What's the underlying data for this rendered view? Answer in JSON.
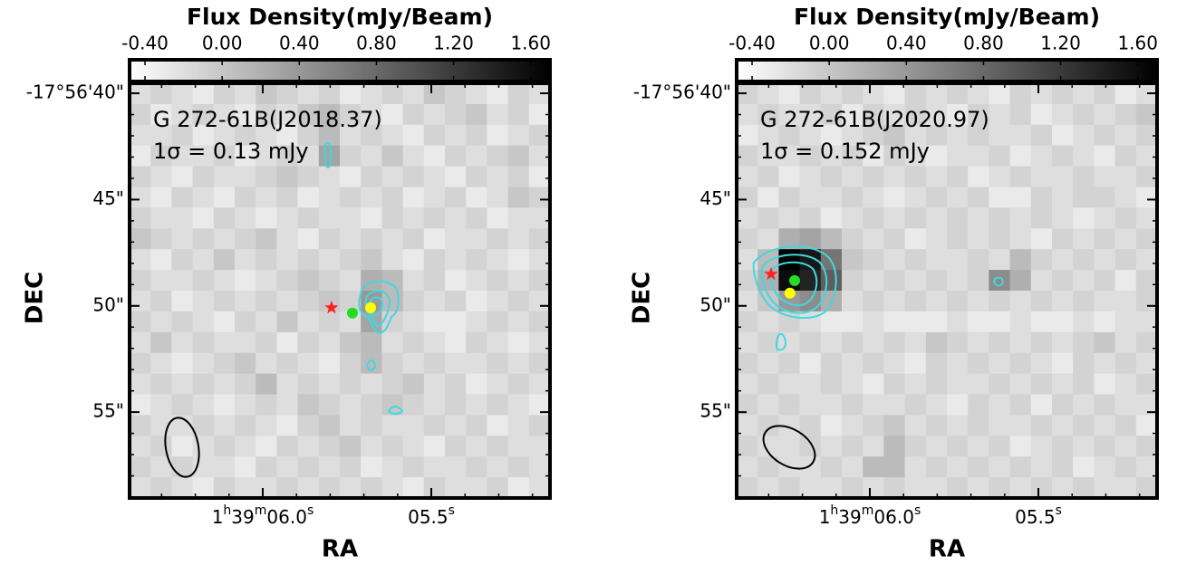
{
  "chart_data": [
    {
      "type": "heatmap",
      "colorbar_label": "Flux Density(mJy/Beam)",
      "colormap": "gray_r",
      "clim": [
        -0.48,
        1.7
      ],
      "cticks": [
        {
          "value": -0.4,
          "label": "-0.40"
        },
        {
          "value": 0,
          "label": "0.00"
        },
        {
          "value": 0.4,
          "label": "0.40"
        },
        {
          "value": 0.8,
          "label": "0.80"
        },
        {
          "value": 1.2,
          "label": "1.20"
        },
        {
          "value": 1.6,
          "label": "1.60"
        }
      ],
      "xlabel": "RA",
      "ylabel": "DEC",
      "xlim": [
        6.395,
        5.148
      ],
      "xticks": [
        {
          "value": 6.0,
          "label": "1h39m06.0s"
        },
        {
          "value": 5.5,
          "label": "05.5s"
        }
      ],
      "ylim": [
        39.53,
        59.04
      ],
      "yticks": [
        {
          "value": 40,
          "label": "-17°56'40\""
        },
        {
          "value": 45,
          "label": "45\""
        },
        {
          "value": 50,
          "label": "50\""
        },
        {
          "value": 55,
          "label": "55\""
        }
      ],
      "annotations": [
        "G 272-61B(J2018.37)",
        "1σ = 0.13 mJy"
      ],
      "markers": [
        {
          "shape": "star",
          "color": "#ff2020",
          "x": 5.796,
          "y": 50.09
        },
        {
          "shape": "circle",
          "color": "#22dd22",
          "x": 5.734,
          "y": 50.34
        },
        {
          "shape": "circle",
          "color": "#ffff00",
          "x": 5.68,
          "y": 50.09
        }
      ],
      "image": [
        [
          -0.2,
          -0.1,
          -0.2,
          -0.3,
          -0.1,
          -0.2,
          0,
          -0.1,
          -0.2,
          -0.1,
          -0.3,
          -0.2,
          -0.1,
          -0.2,
          0,
          -0.1,
          -0.2,
          -0.3,
          -0.1,
          -0.2
        ],
        [
          -0.1,
          -0.3,
          -0.2,
          -0.1,
          -0.2,
          -0.3,
          -0.1,
          -0.2,
          0,
          0.1,
          -0.1,
          -0.2,
          -0.3,
          -0.1,
          -0.2,
          -0.1,
          0,
          -0.2,
          -0.1,
          -0.3
        ],
        [
          -0.2,
          -0.2,
          -0.1,
          -0.3,
          -0.2,
          -0.1,
          -0.2,
          -0.3,
          -0.1,
          0.1,
          -0.2,
          -0.1,
          -0.2,
          -0.3,
          -0.1,
          -0.2,
          -0.1,
          -0.3,
          -0.2,
          -0.1
        ],
        [
          -0.3,
          -0.1,
          -0.2,
          -0.2,
          -0.1,
          -0.3,
          -0.2,
          -0.1,
          -0.2,
          0.3,
          -0.1,
          -0.2,
          0,
          -0.2,
          -0.3,
          -0.1,
          -0.2,
          -0.1,
          0,
          -0.2
        ],
        [
          -0.1,
          -0.2,
          -0.3,
          -0.1,
          -0.2,
          -0.2,
          -0.1,
          0,
          -0.1,
          -0.2,
          -0.3,
          -0.1,
          -0.2,
          -0.1,
          -0.2,
          -0.3,
          -0.1,
          -0.2,
          -0.1,
          -0.3
        ],
        [
          -0.2,
          -0.3,
          -0.1,
          -0.2,
          -0.3,
          -0.1,
          -0.2,
          -0.1,
          -0.3,
          -0.2,
          -0.1,
          -0.2,
          -0.1,
          -0.3,
          -0.2,
          -0.1,
          -0.3,
          -0.2,
          0,
          -0.1
        ],
        [
          -0.1,
          -0.2,
          -0.2,
          -0.3,
          -0.1,
          -0.2,
          -0.3,
          -0.2,
          -0.1,
          -0.2,
          -0.2,
          -0.3,
          -0.1,
          -0.2,
          -0.1,
          -0.2,
          -0.1,
          -0.3,
          -0.2,
          -0.2
        ],
        [
          0,
          -0.1,
          -0.2,
          -0.1,
          -0.2,
          -0.1,
          0,
          -0.2,
          -0.3,
          -0.1,
          -0.2,
          -0.1,
          -0.2,
          -0.1,
          -0.3,
          -0.2,
          -0.2,
          -0.1,
          -0.2,
          -0.1
        ],
        [
          -0.2,
          -0.3,
          -0.1,
          -0.2,
          0,
          -0.2,
          -0.1,
          -0.2,
          -0.1,
          -0.2,
          -0.1,
          0,
          -0.2,
          -0.3,
          -0.1,
          -0.2,
          -0.1,
          -0.2,
          -0.3,
          -0.2
        ],
        [
          -0.1,
          -0.2,
          -0.2,
          -0.1,
          -0.2,
          -0.3,
          -0.2,
          -0.1,
          0,
          -0.1,
          -0.2,
          0.2,
          0.1,
          -0.2,
          -0.1,
          -0.3,
          -0.2,
          -0.1,
          -0.2,
          -0.1
        ],
        [
          -0.2,
          -0.1,
          -0.3,
          -0.2,
          -0.1,
          -0.2,
          -0.1,
          -0.2,
          -0.1,
          0,
          -0.1,
          0.4,
          0.1,
          -0.1,
          -0.2,
          -0.1,
          -0.3,
          -0.2,
          -0.1,
          -0.2
        ],
        [
          -0.1,
          -0.2,
          -0.1,
          -0.2,
          -0.3,
          -0.1,
          -0.2,
          0,
          -0.2,
          -0.1,
          -0.2,
          0.3,
          -0.1,
          -0.2,
          -0.3,
          -0.3,
          -0.2,
          -0.1,
          -0.2,
          -0.1
        ],
        [
          -0.2,
          0,
          -0.2,
          -0.1,
          -0.2,
          -0.2,
          -0.1,
          -0.3,
          -0.1,
          -0.2,
          0,
          0.1,
          -0.2,
          -0.1,
          -0.2,
          -0.3,
          -0.1,
          -0.2,
          -0.3,
          -0.2
        ],
        [
          -0.1,
          -0.2,
          -0.3,
          -0.2,
          -0.1,
          0,
          -0.2,
          -0.1,
          -0.2,
          -0.3,
          -0.1,
          0.1,
          -0.1,
          -0.2,
          -0.1,
          -0.2,
          -0.2,
          -0.1,
          -0.2,
          -0.1
        ],
        [
          -0.2,
          -0.1,
          -0.2,
          -0.1,
          -0.2,
          -0.1,
          0.1,
          -0.2,
          -0.1,
          -0.2,
          -0.1,
          -0.2,
          -0.1,
          0,
          -0.2,
          -0.1,
          -0.3,
          -0.2,
          -0.1,
          -0.2
        ],
        [
          -0.3,
          -0.2,
          -0.1,
          -0.2,
          -0.3,
          -0.2,
          -0.1,
          -0.2,
          0,
          -0.1,
          -0.2,
          -0.1,
          0,
          -0.1,
          -0.2,
          -0.1,
          -0.2,
          -0.1,
          -0.2,
          -0.3
        ],
        [
          -0.1,
          -0.2,
          -0.2,
          -0.1,
          -0.2,
          -0.1,
          -0.2,
          -0.3,
          -0.1,
          0,
          -0.2,
          -0.1,
          -0.2,
          -0.2,
          -0.1,
          -0.2,
          -0.1,
          -0.3,
          -0.2,
          -0.1
        ],
        [
          -0.2,
          -0.1,
          -0.3,
          -0.2,
          -0.1,
          -0.2,
          -0.3,
          -0.1,
          -0.2,
          -0.1,
          0,
          -0.2,
          -0.1,
          -0.2,
          -0.3,
          -0.1,
          -0.2,
          -0.1,
          -0.2,
          -0.2
        ],
        [
          -0.1,
          -0.2,
          -0.1,
          -0.2,
          -0.2,
          -0.3,
          -0.1,
          -0.2,
          -0.1,
          -0.2,
          -0.1,
          -0.3,
          -0.2,
          -0.1,
          -0.2,
          -0.2,
          -0.1,
          -0.2,
          -0.1,
          -0.2
        ],
        [
          -0.2,
          -0.1,
          -0.2,
          -0.3,
          -0.1,
          -0.2,
          -0.2,
          -0.1,
          -0.2,
          -0.1,
          -0.2,
          -0.1,
          -0.2,
          -0.3,
          -0.1,
          -0.2,
          -0.2,
          -0.1,
          -0.3,
          -0.2
        ]
      ]
    },
    {
      "type": "heatmap",
      "colorbar_label": "Flux Density(mJy/Beam)",
      "colormap": "gray_r",
      "clim": [
        -0.48,
        1.7
      ],
      "cticks": [
        {
          "value": -0.4,
          "label": "-0.40"
        },
        {
          "value": 0,
          "label": "0.00"
        },
        {
          "value": 0.4,
          "label": "0.40"
        },
        {
          "value": 0.8,
          "label": "0.80"
        },
        {
          "value": 1.2,
          "label": "1.20"
        },
        {
          "value": 1.6,
          "label": "1.60"
        }
      ],
      "xlabel": "RA",
      "ylabel": "DEC",
      "xlim": [
        6.395,
        5.148
      ],
      "xticks": [
        {
          "value": 6.0,
          "label": "1h39m06.0s"
        },
        {
          "value": 5.5,
          "label": "05.5s"
        }
      ],
      "ylim": [
        39.53,
        59.04
      ],
      "yticks": [
        {
          "value": 40,
          "label": "-17°56'40\""
        },
        {
          "value": 45,
          "label": "45\""
        },
        {
          "value": 50,
          "label": "50\""
        },
        {
          "value": 55,
          "label": "55\""
        }
      ],
      "annotations": [
        "G 272-61B(J2020.97)",
        "1σ = 0.152 mJy"
      ],
      "markers": [
        {
          "shape": "star",
          "color": "#ff2020",
          "x": 6.293,
          "y": 48.51
        },
        {
          "shape": "circle",
          "color": "#22dd22",
          "x": 6.223,
          "y": 48.81
        },
        {
          "shape": "circle",
          "color": "#ffff00",
          "x": 6.237,
          "y": 49.4
        }
      ],
      "image": [
        [
          -0.1,
          -0.2,
          -0.3,
          -0.1,
          -0.2,
          -0.1,
          -0.2,
          -0.3,
          -0.1,
          -0.2,
          -0.1,
          -0.2,
          -0.3,
          -0.1,
          -0.2,
          -0.1,
          -0.2,
          -0.1,
          -0.3,
          -0.2
        ],
        [
          -0.2,
          -0.1,
          -0.2,
          -0.2,
          -0.1,
          -0.3,
          -0.1,
          -0.2,
          -0.1,
          -0.2,
          -0.3,
          -0.1,
          -0.2,
          -0.1,
          -0.3,
          -0.2,
          -0.1,
          -0.2,
          -0.1,
          0
        ],
        [
          -0.3,
          -0.2,
          -0.1,
          -0.2,
          -0.3,
          -0.2,
          -0.1,
          0,
          -0.2,
          -0.1,
          -0.2,
          -0.1,
          -0.2,
          -0.2,
          -0.1,
          -0.3,
          -0.2,
          -0.1,
          -0.2,
          -0.1
        ],
        [
          -0.1,
          -0.2,
          -0.2,
          -0.1,
          -0.2,
          -0.1,
          -0.3,
          -0.1,
          -0.2,
          -0.3,
          -0.2,
          -0.2,
          -0.1,
          -0.3,
          -0.2,
          -0.1,
          -0.2,
          -0.3,
          -0.1,
          -0.2
        ],
        [
          -0.2,
          -0.1,
          -0.3,
          -0.2,
          -0.1,
          -0.2,
          -0.1,
          -0.2,
          -0.1,
          -0.2,
          -0.1,
          -0.3,
          -0.2,
          -0.1,
          -0.2,
          -0.2,
          -0.1,
          -0.2,
          -0.2,
          -0.1
        ],
        [
          -0.1,
          -0.3,
          -0.1,
          -0.2,
          -0.2,
          -0.1,
          -0.2,
          -0.3,
          -0.2,
          -0.1,
          -0.2,
          -0.1,
          -0.3,
          -0.3,
          -0.1,
          -0.2,
          -0.1,
          -0.1,
          -0.2,
          -0.3
        ],
        [
          -0.2,
          -0.1,
          -0.2,
          -0.1,
          -0.3,
          -0.2,
          -0.1,
          -0.2,
          -0.1,
          -0.2,
          -0.1,
          -0.2,
          -0.1,
          -0.2,
          -0.1,
          -0.2,
          -0.3,
          -0.2,
          -0.1,
          -0.2
        ],
        [
          -0.1,
          -0.2,
          0.2,
          0.3,
          0.1,
          -0.1,
          -0.2,
          -0.1,
          -0.3,
          -0.2,
          -0.1,
          -0.2,
          -0.1,
          -0.2,
          -0.3,
          -0.1,
          -0.2,
          -0.1,
          -0.2,
          -0.1
        ],
        [
          -0.2,
          0.1,
          1.7,
          1.5,
          0.7,
          0,
          -0.1,
          -0.2,
          -0.1,
          -0.2,
          -0.2,
          -0.1,
          -0.2,
          0.1,
          -0.1,
          -0.2,
          -0.1,
          -0.2,
          -0.1,
          -0.2
        ],
        [
          -0.1,
          0.2,
          1.6,
          1.4,
          0.9,
          -0.1,
          -0.2,
          -0.1,
          -0.2,
          -0.1,
          -0.2,
          -0.1,
          0.5,
          0.2,
          -0.2,
          -0.1,
          -0.2,
          -0.1,
          -0.3,
          -0.1
        ],
        [
          -0.2,
          0,
          0.4,
          0.5,
          0.2,
          -0.2,
          -0.1,
          -0.2,
          -0.1,
          -0.2,
          -0.1,
          -0.2,
          -0.1,
          -0.2,
          -0.1,
          -0.2,
          -0.1,
          -0.2,
          -0.2,
          -0.1
        ],
        [
          -0.1,
          -0.2,
          -0.1,
          -0.2,
          -0.3,
          -0.3,
          -0.2,
          -0.3,
          -0.3,
          -0.3,
          -0.2,
          -0.3,
          -0.3,
          -0.2,
          -0.3,
          -0.3,
          -0.2,
          -0.3,
          -0.2,
          -0.2
        ],
        [
          -0.2,
          -0.1,
          -0.2,
          -0.1,
          -0.2,
          -0.1,
          -0.2,
          -0.1,
          -0.2,
          0,
          -0.1,
          -0.2,
          -0.1,
          -0.2,
          -0.1,
          -0.2,
          -0.1,
          0,
          -0.2,
          -0.1
        ],
        [
          -0.1,
          -0.2,
          -0.1,
          -0.3,
          -0.1,
          -0.2,
          -0.1,
          -0.2,
          -0.3,
          -0.1,
          -0.2,
          -0.1,
          -0.2,
          -0.1,
          -0.2,
          -0.3,
          -0.1,
          -0.2,
          -0.1,
          -0.2
        ],
        [
          -0.2,
          -0.1,
          -0.2,
          -0.2,
          -0.1,
          -0.2,
          -0.3,
          -0.1,
          -0.2,
          -0.1,
          -0.2,
          -0.2,
          -0.1,
          -0.2,
          -0.1,
          -0.2,
          -0.1,
          -0.3,
          -0.2,
          -0.1
        ],
        [
          -0.1,
          -0.2,
          -0.1,
          -0.2,
          -0.2,
          -0.1,
          -0.2,
          -0.2,
          -0.1,
          -0.2,
          -0.3,
          -0.1,
          -0.2,
          -0.1,
          -0.3,
          -0.1,
          -0.2,
          -0.1,
          -0.2,
          -0.2
        ],
        [
          -0.2,
          -0.1,
          -0.2,
          -0.1,
          -0.3,
          -0.2,
          -0.1,
          0,
          -0.2,
          -0.1,
          -0.2,
          -0.1,
          -0.2,
          -0.2,
          -0.1,
          -0.2,
          -0.1,
          -0.2,
          -0.1,
          -0.3
        ],
        [
          -0.1,
          -0.2,
          -0.2,
          -0.1,
          -0.2,
          -0.1,
          -0.2,
          0.1,
          -0.1,
          -0.2,
          -0.1,
          -0.2,
          -0.1,
          -0.3,
          -0.2,
          -0.1,
          -0.2,
          -0.1,
          -0.2,
          -0.1
        ],
        [
          -0.2,
          -0.1,
          -0.2,
          -0.2,
          -0.1,
          -0.2,
          0.1,
          0.1,
          -0.2,
          -0.1,
          -0.2,
          -0.1,
          -0.2,
          -0.1,
          -0.2,
          -0.1,
          -0.3,
          -0.2,
          -0.1,
          -0.2
        ],
        [
          -0.1,
          -0.2,
          -0.1,
          -0.2,
          -0.2,
          -0.1,
          -0.2,
          -0.1,
          -0.2,
          -0.2,
          -0.1,
          -0.2,
          -0.1,
          -0.2,
          -0.1,
          -0.2,
          -0.1,
          -0.2,
          -0.2,
          -0.1
        ]
      ]
    }
  ]
}
